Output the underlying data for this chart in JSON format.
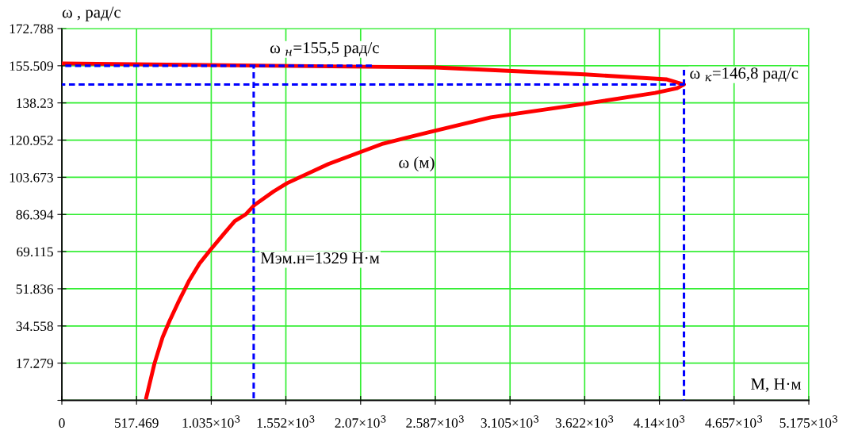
{
  "chart_data": {
    "type": "line",
    "xlabel": "M, Н·м",
    "ylabel": "ω , рад/с",
    "xlim": [
      0,
      5175
    ],
    "ylim": [
      0,
      172.788
    ],
    "xticks": [
      0,
      517.469,
      {
        "value": 1035,
        "label": "1.035×10$^{3}$"
      },
      {
        "value": 1552,
        "label": "1.552×10$^{3}$"
      },
      {
        "value": 2070,
        "label": "2.07×10$^{3}$"
      },
      {
        "value": 2587,
        "label": "2.587×10$^{3}$"
      },
      {
        "value": 3105,
        "label": "3.105×10$^{3}$"
      },
      {
        "value": 3622,
        "label": "3.622×10$^{3}$"
      },
      {
        "value": 4140,
        "label": "4.14×10$^{3}$"
      },
      {
        "value": 4657,
        "label": "4.657×10$^{3}$"
      },
      {
        "value": 5175,
        "label": "5.175×10$^{3}$"
      }
    ],
    "yticks": [
      {
        "value": 0,
        "label": null
      },
      17.279,
      34.558,
      51.836,
      69.115,
      86.394,
      103.673,
      120.952,
      138.23,
      155.509,
      172.788
    ],
    "grid": true,
    "series": [
      {
        "name": "ω (м)",
        "color": "#ff0000",
        "line_style": "solid",
        "x": [
          0,
          2587,
          3622,
          4187,
          4310,
          4263,
          4110,
          3619,
          2972,
          2538,
          2225,
          1846,
          1560,
          1467,
          1333,
          1275,
          1198,
          1125,
          1030,
          954,
          879,
          804,
          746,
          698,
          642,
          585
        ],
        "values": [
          156.6,
          154.7,
          151.5,
          149.2,
          146.8,
          145.1,
          142.9,
          137.8,
          131.5,
          124.5,
          119.3,
          109.8,
          100.9,
          97.1,
          90.7,
          86.5,
          83.3,
          77.6,
          70.0,
          63.6,
          55.3,
          45.2,
          36.9,
          29.3,
          17.2,
          1.3
        ]
      },
      {
        "color": "#0000ff",
        "line_style": "dashed",
        "x": [
          0,
          2150
        ],
        "values": [
          155.5,
          155.5
        ]
      },
      {
        "color": "#0000ff",
        "line_style": "dashed",
        "x": [
          1329,
          1329
        ],
        "values": [
          0,
          155.5
        ]
      },
      {
        "color": "#0000ff",
        "line_style": "dashed",
        "x": [
          0,
          4310
        ],
        "values": [
          146.8,
          146.8
        ]
      },
      {
        "color": "#0000ff",
        "line_style": "dashed",
        "x": [
          4310,
          4310
        ],
        "values": [
          0,
          153.6
        ]
      }
    ],
    "annotations": [
      {
        "text": "ω $_{н}$=155,5 рад/с",
        "x": 1440,
        "y": 155.5
      },
      {
        "text": "ω $_{к}$=146,8 рад/с",
        "x": 4310,
        "y": 146.8
      },
      {
        "text": "Mэм.н=1329 Н·м",
        "x": 1329,
        "y": 62
      }
    ]
  }
}
